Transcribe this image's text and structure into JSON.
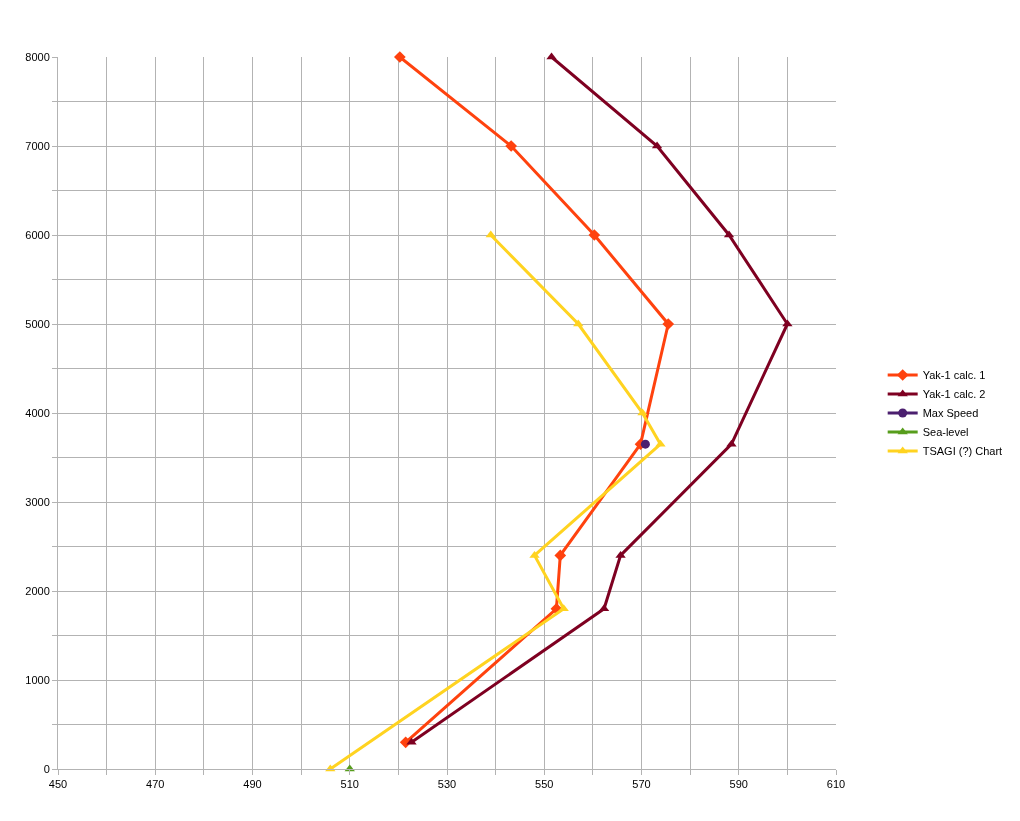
{
  "chart_data": {
    "type": "line",
    "series": [
      {
        "name": "Yak-1 calc. 1",
        "color": "#ff420e",
        "marker": "diamond",
        "x": [
          520.3,
          543.2,
          560.3,
          575.5,
          569.8,
          553.3,
          552.5,
          521.5
        ],
        "values": [
          8000,
          7000,
          6000,
          5000,
          3650,
          2400,
          1800,
          300
        ]
      },
      {
        "name": "Yak-1 calc. 2",
        "color": "#7e0021",
        "marker": "triangle",
        "x": [
          551.5,
          573.2,
          588,
          600,
          588.5,
          565.7,
          562.3,
          522.7
        ],
        "values": [
          8000,
          7000,
          6000,
          5000,
          3650,
          2400,
          1800,
          300
        ]
      },
      {
        "name": "Max Speed",
        "color": "#4b1f6f",
        "marker": "circle",
        "x": [
          570.8
        ],
        "values": [
          3650
        ]
      },
      {
        "name": "Sea-level",
        "color": "#579d1c",
        "marker": "triangle",
        "x": [
          510
        ],
        "values": [
          0
        ]
      },
      {
        "name": "TSAGI (?) Chart",
        "color": "#ffd320",
        "marker": "triangle",
        "x": [
          539,
          557,
          570.2,
          573.9,
          548,
          554,
          506
        ],
        "values": [
          6000,
          5000,
          4000,
          3650,
          2400,
          1800,
          0
        ]
      }
    ],
    "xlim": [
      450,
      610
    ],
    "xticks": [
      450,
      {
        "value": 460,
        "label": null
      },
      470,
      {
        "value": 480,
        "label": null
      },
      490,
      {
        "value": 500,
        "label": null
      },
      510,
      {
        "value": 520,
        "label": null
      },
      530,
      {
        "value": 540,
        "label": null
      },
      550,
      {
        "value": 560,
        "label": null
      },
      570,
      {
        "value": 580,
        "label": null
      },
      590,
      {
        "value": 600,
        "label": null
      },
      610
    ],
    "ylim": [
      0,
      8000
    ],
    "yticks": [
      0,
      {
        "value": 500,
        "label": null
      },
      1000,
      {
        "value": 1500,
        "label": null
      },
      2000,
      {
        "value": 2500,
        "label": null
      },
      3000,
      {
        "value": 3500,
        "label": null
      },
      4000,
      {
        "value": 4500,
        "label": null
      },
      5000,
      {
        "value": 5500,
        "label": null
      },
      6000,
      {
        "value": 6500,
        "label": null
      },
      7000,
      {
        "value": 7500,
        "label": null
      },
      8000
    ],
    "grid": true,
    "legend": "right",
    "line_style": "solid"
  }
}
